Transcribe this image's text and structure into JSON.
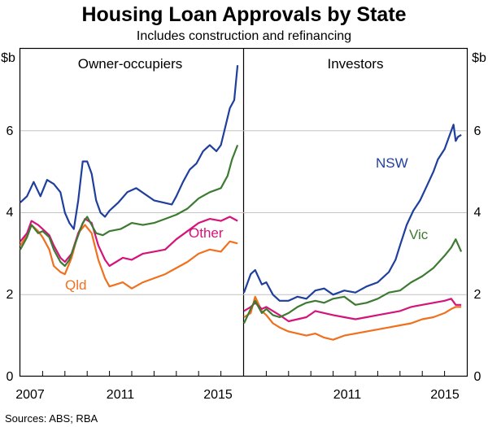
{
  "chart_data": {
    "type": "line",
    "title": "Housing Loan Approvals by State",
    "subtitle": "Includes construction and refinancing",
    "unit_left": "$b",
    "unit_right": "$b",
    "source": "Sources:   ABS; RBA",
    "ylim": [
      0,
      8
    ],
    "y_ticks": [
      "0",
      "2",
      "4",
      "6"
    ],
    "grid": true,
    "x_tick_labels_left": [
      "2007",
      "2011",
      "2015"
    ],
    "x_tick_labels_right": [
      "2011",
      "2015"
    ],
    "colors": {
      "NSW": "#1f3f9c",
      "Vic": "#3d7a32",
      "Other": "#d4147a",
      "Qld": "#f0701e"
    },
    "panels": [
      {
        "name": "Owner-occupiers",
        "xlim": [
          2006.0,
          2016.0
        ],
        "series": [
          {
            "name": "",
            "key": "NSW",
            "x": [
              2006.0,
              2006.3,
              2006.6,
              2006.9,
              2007.2,
              2007.5,
              2007.8,
              2008.0,
              2008.2,
              2008.4,
              2008.6,
              2008.8,
              2009.0,
              2009.2,
              2009.4,
              2009.6,
              2009.8,
              2010.0,
              2010.4,
              2010.8,
              2011.2,
              2011.6,
              2012.0,
              2012.4,
              2012.8,
              2013.0,
              2013.3,
              2013.6,
              2013.9,
              2014.2,
              2014.5,
              2014.8,
              2015.0,
              2015.2,
              2015.4,
              2015.6,
              2015.75
            ],
            "y": [
              4.25,
              4.4,
              4.75,
              4.4,
              4.8,
              4.7,
              4.5,
              4.0,
              3.75,
              3.6,
              4.3,
              5.25,
              5.25,
              4.95,
              4.3,
              4.0,
              3.9,
              4.05,
              4.25,
              4.5,
              4.6,
              4.45,
              4.3,
              4.25,
              4.2,
              4.4,
              4.75,
              5.05,
              5.2,
              5.5,
              5.65,
              5.5,
              5.65,
              6.1,
              6.55,
              6.75,
              7.6
            ]
          },
          {
            "name": "",
            "key": "Vic",
            "x": [
              2006.0,
              2006.3,
              2006.5,
              2006.8,
              2007.0,
              2007.3,
              2007.5,
              2007.8,
              2008.0,
              2008.2,
              2008.5,
              2008.8,
              2009.0,
              2009.2,
              2009.4,
              2009.7,
              2010.0,
              2010.5,
              2011.0,
              2011.5,
              2012.0,
              2012.5,
              2013.0,
              2013.5,
              2014.0,
              2014.5,
              2015.0,
              2015.3,
              2015.5,
              2015.75
            ],
            "y": [
              3.1,
              3.4,
              3.7,
              3.5,
              3.55,
              3.4,
              3.1,
              2.8,
              2.7,
              2.85,
              3.3,
              3.75,
              3.9,
              3.7,
              3.5,
              3.45,
              3.55,
              3.6,
              3.75,
              3.7,
              3.75,
              3.85,
              3.95,
              4.1,
              4.35,
              4.5,
              4.6,
              4.9,
              5.3,
              5.65
            ]
          },
          {
            "name": "Other",
            "key": "Other",
            "x": [
              2006.0,
              2006.3,
              2006.5,
              2006.8,
              2007.0,
              2007.3,
              2007.5,
              2007.8,
              2008.0,
              2008.3,
              2008.6,
              2008.9,
              2009.2,
              2009.5,
              2009.8,
              2010.0,
              2010.3,
              2010.6,
              2011.0,
              2011.5,
              2012.0,
              2012.5,
              2013.0,
              2013.5,
              2014.0,
              2014.5,
              2015.0,
              2015.4,
              2015.75
            ],
            "y": [
              3.3,
              3.5,
              3.8,
              3.7,
              3.6,
              3.45,
              3.2,
              2.9,
              2.8,
              3.0,
              3.5,
              3.85,
              3.75,
              3.2,
              2.85,
              2.7,
              2.8,
              2.9,
              2.85,
              3.0,
              3.05,
              3.1,
              3.35,
              3.55,
              3.75,
              3.85,
              3.8,
              3.9,
              3.8
            ]
          },
          {
            "name": "Qld",
            "key": "Qld",
            "x": [
              2006.0,
              2006.3,
              2006.5,
              2006.8,
              2007.0,
              2007.3,
              2007.5,
              2007.8,
              2008.0,
              2008.3,
              2008.6,
              2008.9,
              2009.2,
              2009.5,
              2009.8,
              2010.0,
              2010.3,
              2010.6,
              2011.0,
              2011.5,
              2012.0,
              2012.5,
              2013.0,
              2013.5,
              2014.0,
              2014.5,
              2015.0,
              2015.4,
              2015.75
            ],
            "y": [
              3.2,
              3.45,
              3.7,
              3.55,
              3.4,
              3.1,
              2.7,
              2.55,
              2.5,
              2.9,
              3.5,
              3.7,
              3.5,
              2.85,
              2.4,
              2.2,
              2.25,
              2.3,
              2.15,
              2.3,
              2.4,
              2.5,
              2.65,
              2.8,
              3.0,
              3.1,
              3.05,
              3.3,
              3.25
            ]
          }
        ]
      },
      {
        "name": "Investors",
        "xlim": [
          2006.0,
          2016.0
        ],
        "series": [
          {
            "name": "NSW",
            "key": "NSW",
            "x": [
              2006.0,
              2006.3,
              2006.5,
              2006.8,
              2007.0,
              2007.3,
              2007.6,
              2008.0,
              2008.4,
              2008.8,
              2009.2,
              2009.6,
              2010.0,
              2010.5,
              2011.0,
              2011.5,
              2012.0,
              2012.5,
              2012.8,
              2013.0,
              2013.3,
              2013.6,
              2013.9,
              2014.2,
              2014.5,
              2014.7,
              2015.0,
              2015.2,
              2015.4,
              2015.5,
              2015.6,
              2015.75
            ],
            "y": [
              2.05,
              2.5,
              2.6,
              2.25,
              2.3,
              2.0,
              1.85,
              1.85,
              1.95,
              1.9,
              2.1,
              2.15,
              2.0,
              2.1,
              2.05,
              2.2,
              2.3,
              2.55,
              2.85,
              3.2,
              3.7,
              4.05,
              4.3,
              4.65,
              5.0,
              5.3,
              5.55,
              5.85,
              6.15,
              5.75,
              5.85,
              5.9
            ]
          },
          {
            "name": "Vic",
            "key": "Vic",
            "x": [
              2006.0,
              2006.3,
              2006.5,
              2006.8,
              2007.0,
              2007.3,
              2007.6,
              2008.0,
              2008.4,
              2008.8,
              2009.2,
              2009.6,
              2010.0,
              2010.5,
              2011.0,
              2011.5,
              2012.0,
              2012.5,
              2013.0,
              2013.5,
              2014.0,
              2014.5,
              2015.0,
              2015.3,
              2015.5,
              2015.75
            ],
            "y": [
              1.3,
              1.65,
              1.85,
              1.55,
              1.65,
              1.5,
              1.45,
              1.55,
              1.7,
              1.8,
              1.85,
              1.8,
              1.9,
              1.95,
              1.75,
              1.8,
              1.9,
              2.05,
              2.1,
              2.3,
              2.45,
              2.65,
              2.95,
              3.15,
              3.35,
              3.05
            ]
          },
          {
            "name": "",
            "key": "Other",
            "x": [
              2006.0,
              2006.3,
              2006.5,
              2006.8,
              2007.0,
              2007.3,
              2007.6,
              2008.0,
              2008.4,
              2008.8,
              2009.2,
              2009.6,
              2010.0,
              2010.5,
              2011.0,
              2011.5,
              2012.0,
              2012.5,
              2013.0,
              2013.5,
              2014.0,
              2014.5,
              2015.0,
              2015.3,
              2015.5,
              2015.75
            ],
            "y": [
              1.6,
              1.7,
              1.8,
              1.65,
              1.7,
              1.6,
              1.5,
              1.35,
              1.4,
              1.45,
              1.6,
              1.55,
              1.5,
              1.45,
              1.4,
              1.45,
              1.5,
              1.55,
              1.6,
              1.7,
              1.75,
              1.8,
              1.85,
              1.9,
              1.75,
              1.75
            ]
          },
          {
            "name": "",
            "key": "Qld",
            "x": [
              2006.0,
              2006.3,
              2006.5,
              2006.8,
              2007.0,
              2007.3,
              2007.6,
              2008.0,
              2008.4,
              2008.8,
              2009.2,
              2009.6,
              2010.0,
              2010.5,
              2011.0,
              2011.5,
              2012.0,
              2012.5,
              2013.0,
              2013.5,
              2014.0,
              2014.5,
              2015.0,
              2015.3,
              2015.5,
              2015.75
            ],
            "y": [
              1.45,
              1.55,
              1.95,
              1.6,
              1.5,
              1.3,
              1.2,
              1.1,
              1.05,
              1.0,
              1.05,
              0.95,
              0.9,
              1.0,
              1.05,
              1.1,
              1.15,
              1.2,
              1.25,
              1.3,
              1.4,
              1.45,
              1.55,
              1.65,
              1.7,
              1.7
            ]
          }
        ]
      }
    ]
  }
}
